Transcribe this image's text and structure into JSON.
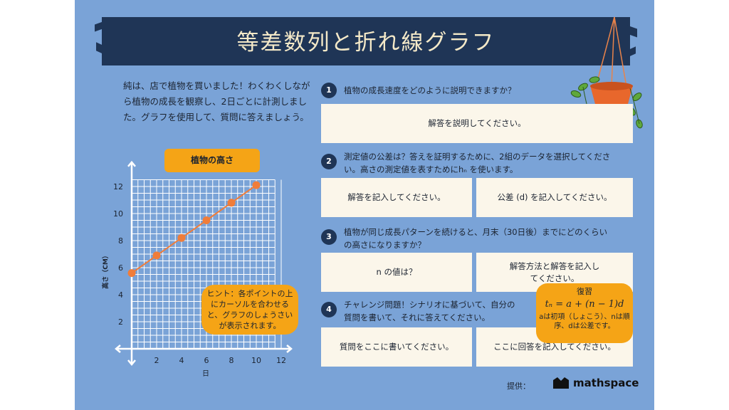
{
  "title": "等差数列と折れ線グラフ",
  "intro": "純は、店で植物を買いました！わくわくしながら植物の成長を観察し、2日ごとに計測しました。グラフを使用して、質問に答えましょう。",
  "chart_title": "植物の高さ",
  "hint": "ヒント：各ポイントの上にカーソルを合わせると、グラフのしょうさいが表示されます。",
  "questions": [
    {
      "num": "1",
      "text": "植物の成長速度をどのように説明できますか？",
      "answers": [
        "解答を説明してください。"
      ]
    },
    {
      "num": "2",
      "text": "測定値の公差は？答えを証明するために、2組のデータを選択してください。高さの測定値を表すためにhₙ を使います。",
      "answers": [
        "解答を記入してください。",
        "公差 (d) を記入してください。"
      ]
    },
    {
      "num": "3",
      "text": "植物が同じ成長パターンを続けると、月末（30日後）までにどのくらいの高さになりますか？",
      "answers": [
        "n の値は？",
        "解答方法と解答を記入してください。"
      ]
    },
    {
      "num": "4",
      "text": "チャレンジ問題！シナリオに基づいて、自分の質問を書いて、それに答えてください。",
      "answers": [
        "質問をここに書いてください。",
        "ここに回答を記入してください。"
      ]
    }
  ],
  "review": {
    "title": "復習",
    "formula": "tₙ = a + (n − 1)d",
    "note": "aは初項（しょこう）、nは順序、dは公差です。"
  },
  "credit_label": "提供：",
  "brand": "mathspace",
  "colors": {
    "background": "#7aa3d7",
    "banner": "#1f3556",
    "accent": "#f5a416",
    "card": "#fbf6ea",
    "line": "#f07d3a"
  },
  "chart_data": {
    "type": "line",
    "title": "植物の高さ",
    "xlabel": "日",
    "ylabel": "高さ（CM）",
    "x": [
      0,
      2,
      4,
      6,
      8,
      10
    ],
    "series": [
      {
        "values": [
          5.6,
          6.9,
          8.2,
          9.5,
          10.8,
          12.1
        ]
      }
    ],
    "xlim": [
      0,
      12
    ],
    "ylim": [
      0,
      12
    ],
    "x_ticks": [
      "2",
      "4",
      "6",
      "8",
      "10",
      "12"
    ],
    "y_ticks": [
      "2",
      "4",
      "6",
      "8",
      "10",
      "12"
    ],
    "grid": true
  }
}
